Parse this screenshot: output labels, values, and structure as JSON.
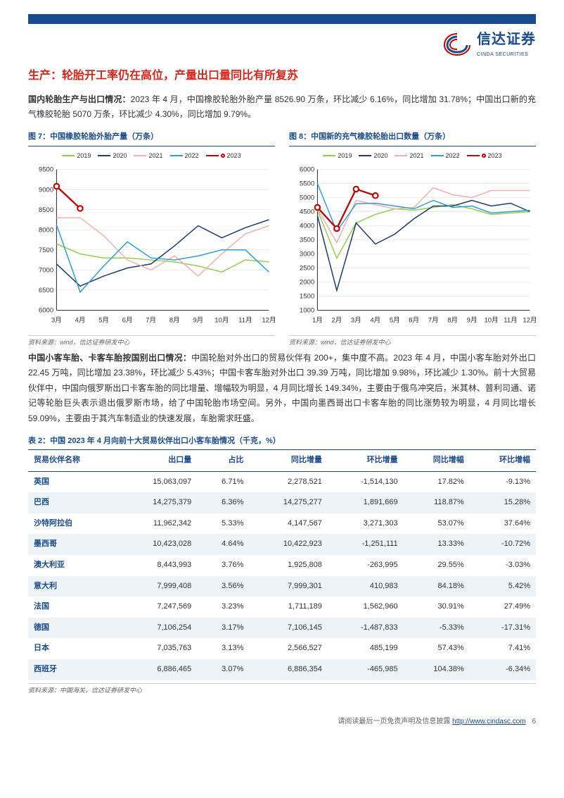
{
  "header": {
    "logo_cn": "信达证券",
    "logo_en": "CINDA SECURITIES"
  },
  "section_title": "生产：轮胎开工率仍在高位，产量出口量同比有所复苏",
  "para1_bold": "国内轮胎生产与出口情况：",
  "para1_rest": "2023 年 4 月，中国橡胶轮胎外胎产量 8526.90 万条，环比减少 6.16%，同比增加 31.78%；中国出口新的充气橡胶轮胎 5070 万条，环比减少 4.30%，同比增加 9.79%。",
  "chart1": {
    "title": "图 7：中国橡胶轮胎外胎产量（万条）",
    "source": "资料来源：wind，信达证券研发中心",
    "legend": [
      "2019",
      "2020",
      "2021",
      "2022",
      "2023"
    ],
    "colors": [
      "#92d050",
      "#1f3a6e",
      "#f4b0b0",
      "#2f9ed8",
      "#c00000"
    ],
    "x_labels": [
      "3月",
      "4月",
      "5月",
      "6月",
      "7月",
      "8月",
      "9月",
      "10月",
      "11月",
      "12月"
    ],
    "ylim": [
      6000,
      9500
    ],
    "ytick_step": 500,
    "series": {
      "2019": [
        7650,
        7400,
        7300,
        7300,
        7250,
        7200,
        7100,
        6950,
        7250,
        7200
      ],
      "2020": [
        7150,
        6600,
        6850,
        7050,
        7150,
        7600,
        8100,
        7800,
        8050,
        8250
      ],
      "2021": [
        8300,
        8300,
        7850,
        7250,
        7000,
        7350,
        6850,
        7400,
        7900,
        8100
      ],
      "2022": [
        8120,
        6450,
        7100,
        7700,
        7300,
        7250,
        7350,
        7500,
        7500,
        6950
      ],
      "2023": [
        9080,
        8530
      ]
    },
    "markers_2023": true
  },
  "chart2": {
    "title": "图 8：中国新的充气橡胶轮胎出口数量（万条）",
    "source": "资料来源：wind，信达证券研发中心",
    "legend": [
      "2019",
      "2020",
      "2021",
      "2022",
      "2023"
    ],
    "colors": [
      "#92d050",
      "#1f3a6e",
      "#f4b0b0",
      "#2f9ed8",
      "#c00000"
    ],
    "x_labels": [
      "1月",
      "2月",
      "3月",
      "4月",
      "5月",
      "6月",
      "7月",
      "8月",
      "9月",
      "10月",
      "11月",
      "12月"
    ],
    "ylim": [
      1000,
      6000
    ],
    "ytick_step": 500,
    "series": {
      "2019": [
        4550,
        2850,
        4100,
        4400,
        4600,
        4550,
        4650,
        4750,
        4600,
        4400,
        4450,
        4500
      ],
      "2020": [
        4350,
        1700,
        4100,
        3350,
        3700,
        4250,
        4700,
        4700,
        4900,
        4700,
        4800,
        4500
      ],
      "2021": [
        4600,
        3400,
        4900,
        4750,
        4600,
        4650,
        5350,
        5100,
        5000,
        5250,
        5250,
        5250
      ],
      "2022": [
        5500,
        3800,
        4780,
        4800,
        4700,
        4600,
        4900,
        4650,
        4700,
        4450,
        4500,
        4550
      ],
      "2023": [
        4650,
        3900,
        5300,
        5070
      ]
    },
    "markers_2023": true
  },
  "para2_bold": "中国小客车胎、卡客车胎按国别出口情况：",
  "para2_rest": "中国轮胎对外出口的贸易伙伴有 200+，集中度不高。2023 年 4 月，中国小客车胎对外出口 22.45 万吨，同比增加 23.38%，环比减少 5.43%；中国卡客车胎对外出口 39.39 万吨，同比增加 9.98%，环比减少 1.30%。前十大贸易伙伴中，中国向俄罗斯出口卡客车胎的同比增量、增幅较为明显，4 月同比增长 149.34%，主要由于俄乌冲突后，米其林、普利司通、诺记等轮胎巨头表示退出俄罗斯市场，给了中国轮胎市场空间。另外，中国向墨西哥出口卡客车胎的同比涨势较为明显，4 月同比增长 59.09%，主要由于其汽车制造业的快速发展，车胎需求旺盛。",
  "table": {
    "title": "表 2：中国 2023 年 4 月向前十大贸易伙伴出口小客车胎情况（千克，%）",
    "source": "资料来源：中国海关，信达证券研发中心",
    "columns": [
      "贸易伙伴名称",
      "出口量",
      "占比",
      "同比增量",
      "环比增量",
      "同比增幅",
      "环比增幅"
    ],
    "rows": [
      [
        "英国",
        "15,063,097",
        "6.71%",
        "2,278,521",
        "-1,514,130",
        "17.82%",
        "-9.13%"
      ],
      [
        "巴西",
        "14,275,379",
        "6.36%",
        "14,275,277",
        "1,891,669",
        "118.87%",
        "15.28%"
      ],
      [
        "沙特阿拉伯",
        "11,962,342",
        "5.33%",
        "4,147,567",
        "3,271,303",
        "53.07%",
        "37.64%"
      ],
      [
        "墨西哥",
        "10,423,028",
        "4.64%",
        "10,422,923",
        "-1,251,111",
        "13.33%",
        "-10.72%"
      ],
      [
        "澳大利亚",
        "8,443,993",
        "3.76%",
        "1,925,808",
        "-263,995",
        "29.55%",
        "-3.03%"
      ],
      [
        "意大利",
        "7,999,408",
        "3.56%",
        "7,999,301",
        "410,983",
        "84.18%",
        "5.42%"
      ],
      [
        "法国",
        "7,247,569",
        "3.23%",
        "1,711,189",
        "1,562,960",
        "30.91%",
        "27.49%"
      ],
      [
        "德国",
        "7,106,254",
        "3.17%",
        "7,106,145",
        "-1,487,833",
        "-5.33%",
        "-17.31%"
      ],
      [
        "日本",
        "7,035,763",
        "3.13%",
        "2,566,527",
        "485,199",
        "57.43%",
        "7.41%"
      ],
      [
        "西班牙",
        "6,886,465",
        "3.07%",
        "6,886,354",
        "-465,985",
        "104.38%",
        "-6.34%"
      ]
    ]
  },
  "footer": {
    "text": "请阅读最后一页免责声明及信息披露",
    "link": "http://www.cindasc.com",
    "page": "6"
  }
}
